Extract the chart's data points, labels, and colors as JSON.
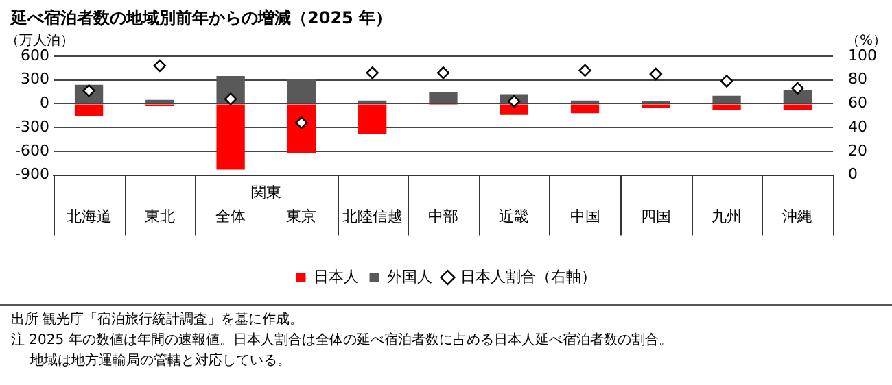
{
  "chart_data": {
    "type": "bar",
    "title": "延べ宿泊者数の地域別前年からの増減（2025 年）",
    "ylabel": "（万人泊）",
    "y2label": "（%）",
    "categories": [
      "北海道",
      "東北",
      "全体",
      "東京",
      "北陸信越",
      "中部",
      "近畿",
      "中国",
      "四国",
      "九州",
      "沖縄"
    ],
    "series": [
      {
        "name": "日本人",
        "color": "#ff0000",
        "values": [
          -160,
          -30,
          -830,
          -620,
          -380,
          -20,
          -140,
          -120,
          -50,
          -80,
          -80
        ]
      },
      {
        "name": "外国人",
        "color": "#595959",
        "values": [
          240,
          50,
          350,
          310,
          40,
          150,
          120,
          40,
          30,
          100,
          170
        ]
      },
      {
        "name": "日本人割合（右軸）",
        "type": "scatter",
        "axis": "y2",
        "marker": "diamond",
        "color": "#000000",
        "values": [
          71,
          92,
          64,
          44,
          86,
          86,
          62,
          88,
          85,
          79,
          73
        ]
      }
    ],
    "stacked": true,
    "ylim": [
      -900,
      600
    ],
    "yticks": [
      -900,
      -600,
      -300,
      0,
      300,
      600
    ],
    "y2lim": [
      0,
      100
    ],
    "y2ticks": [
      0,
      20,
      40,
      60,
      80,
      100
    ],
    "grid": "y",
    "legend": "bottom",
    "annotations": [
      "関東",
      "出所 観光庁「宿泊旅行統計調査」を基に作成。",
      "注 2025 年の数値は年間の速報値。日本人割合は全体の延べ宿泊者数に占める日本人延べ宿泊者数の割合。",
      "地域は地方運輸局の管轄と対応している。"
    ]
  }
}
